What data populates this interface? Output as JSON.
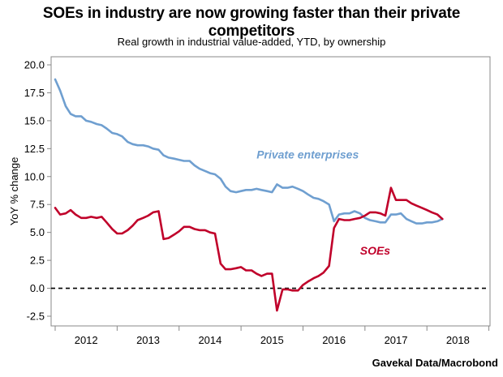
{
  "chart_data": {
    "type": "line",
    "title": "SOEs in industry are now growing faster than their private competitors",
    "subtitle": "Real growth in industrial value-added, YTD, by ownership",
    "ylabel": "YoY % change",
    "xlabel": "",
    "ylim": [
      -2.5,
      20.0
    ],
    "yticks": [
      "20.0",
      "17.5",
      "15.0",
      "12.5",
      "10.0",
      "7.5",
      "5.0",
      "2.5",
      "0.0",
      "-2.5"
    ],
    "year_labels": [
      "2012",
      "2013",
      "2014",
      "2015",
      "2016",
      "2017",
      "2018"
    ],
    "x_start": 2012.0,
    "x_end": 2018.94,
    "reference_line": 0,
    "series": [
      {
        "name": "Private enterprises",
        "color": "#6f9fd0",
        "points": [
          [
            2012.0,
            18.7
          ],
          [
            2012.08,
            17.7
          ],
          [
            2012.17,
            16.3
          ],
          [
            2012.25,
            15.6
          ],
          [
            2012.33,
            15.4
          ],
          [
            2012.42,
            15.4
          ],
          [
            2012.5,
            15.0
          ],
          [
            2012.58,
            14.9
          ],
          [
            2012.67,
            14.7
          ],
          [
            2012.75,
            14.6
          ],
          [
            2012.83,
            14.3
          ],
          [
            2012.92,
            13.9
          ],
          [
            2013.0,
            13.8
          ],
          [
            2013.08,
            13.6
          ],
          [
            2013.17,
            13.1
          ],
          [
            2013.25,
            12.9
          ],
          [
            2013.33,
            12.8
          ],
          [
            2013.42,
            12.8
          ],
          [
            2013.5,
            12.7
          ],
          [
            2013.58,
            12.5
          ],
          [
            2013.67,
            12.4
          ],
          [
            2013.75,
            11.9
          ],
          [
            2013.83,
            11.7
          ],
          [
            2013.92,
            11.6
          ],
          [
            2014.0,
            11.5
          ],
          [
            2014.08,
            11.4
          ],
          [
            2014.17,
            11.4
          ],
          [
            2014.25,
            11.0
          ],
          [
            2014.33,
            10.7
          ],
          [
            2014.42,
            10.5
          ],
          [
            2014.5,
            10.3
          ],
          [
            2014.58,
            10.2
          ],
          [
            2014.67,
            9.8
          ],
          [
            2014.75,
            9.1
          ],
          [
            2014.83,
            8.7
          ],
          [
            2014.92,
            8.6
          ],
          [
            2015.0,
            8.7
          ],
          [
            2015.08,
            8.8
          ],
          [
            2015.17,
            8.8
          ],
          [
            2015.25,
            8.9
          ],
          [
            2015.33,
            8.8
          ],
          [
            2015.42,
            8.7
          ],
          [
            2015.5,
            8.6
          ],
          [
            2015.58,
            9.3
          ],
          [
            2015.67,
            9.0
          ],
          [
            2015.75,
            9.0
          ],
          [
            2015.83,
            9.1
          ],
          [
            2015.92,
            8.9
          ],
          [
            2016.0,
            8.7
          ],
          [
            2016.08,
            8.4
          ],
          [
            2016.17,
            8.1
          ],
          [
            2016.25,
            8.0
          ],
          [
            2016.33,
            7.8
          ],
          [
            2016.42,
            7.5
          ],
          [
            2016.5,
            6.0
          ],
          [
            2016.58,
            6.6
          ],
          [
            2016.67,
            6.7
          ],
          [
            2016.75,
            6.7
          ],
          [
            2016.83,
            6.9
          ],
          [
            2016.92,
            6.7
          ],
          [
            2017.0,
            6.3
          ],
          [
            2017.08,
            6.1
          ],
          [
            2017.17,
            6.0
          ],
          [
            2017.25,
            5.9
          ],
          [
            2017.33,
            5.9
          ],
          [
            2017.42,
            6.6
          ],
          [
            2017.5,
            6.6
          ],
          [
            2017.58,
            6.7
          ],
          [
            2017.67,
            6.2
          ],
          [
            2017.75,
            6.0
          ],
          [
            2017.83,
            5.8
          ],
          [
            2017.92,
            5.8
          ],
          [
            2018.0,
            5.9
          ],
          [
            2018.08,
            5.9
          ],
          [
            2018.17,
            6.0
          ],
          [
            2018.25,
            6.2
          ]
        ]
      },
      {
        "name": "SOEs",
        "color": "#c0002a",
        "points": [
          [
            2012.0,
            7.2
          ],
          [
            2012.08,
            6.6
          ],
          [
            2012.17,
            6.7
          ],
          [
            2012.25,
            7.0
          ],
          [
            2012.33,
            6.6
          ],
          [
            2012.42,
            6.3
          ],
          [
            2012.5,
            6.3
          ],
          [
            2012.58,
            6.4
          ],
          [
            2012.67,
            6.3
          ],
          [
            2012.75,
            6.4
          ],
          [
            2012.83,
            5.9
          ],
          [
            2012.92,
            5.3
          ],
          [
            2013.0,
            4.9
          ],
          [
            2013.08,
            4.9
          ],
          [
            2013.17,
            5.2
          ],
          [
            2013.25,
            5.6
          ],
          [
            2013.33,
            6.1
          ],
          [
            2013.42,
            6.3
          ],
          [
            2013.5,
            6.5
          ],
          [
            2013.58,
            6.8
          ],
          [
            2013.67,
            6.9
          ],
          [
            2013.75,
            4.4
          ],
          [
            2013.83,
            4.5
          ],
          [
            2013.92,
            4.8
          ],
          [
            2014.0,
            5.1
          ],
          [
            2014.08,
            5.5
          ],
          [
            2014.17,
            5.5
          ],
          [
            2014.25,
            5.3
          ],
          [
            2014.33,
            5.2
          ],
          [
            2014.42,
            5.2
          ],
          [
            2014.5,
            5.0
          ],
          [
            2014.58,
            4.9
          ],
          [
            2014.67,
            2.2
          ],
          [
            2014.75,
            1.7
          ],
          [
            2014.83,
            1.7
          ],
          [
            2014.92,
            1.8
          ],
          [
            2015.0,
            1.9
          ],
          [
            2015.08,
            1.6
          ],
          [
            2015.17,
            1.6
          ],
          [
            2015.25,
            1.3
          ],
          [
            2015.33,
            1.1
          ],
          [
            2015.42,
            1.3
          ],
          [
            2015.5,
            1.3
          ],
          [
            2015.58,
            -2.0
          ],
          [
            2015.67,
            -0.1
          ],
          [
            2015.75,
            -0.1
          ],
          [
            2015.83,
            -0.2
          ],
          [
            2015.92,
            -0.2
          ],
          [
            2016.0,
            0.3
          ],
          [
            2016.08,
            0.6
          ],
          [
            2016.17,
            0.9
          ],
          [
            2016.25,
            1.1
          ],
          [
            2016.33,
            1.4
          ],
          [
            2016.42,
            2.0
          ],
          [
            2016.5,
            5.4
          ],
          [
            2016.58,
            6.2
          ],
          [
            2016.67,
            6.1
          ],
          [
            2016.75,
            6.1
          ],
          [
            2016.83,
            6.2
          ],
          [
            2016.92,
            6.3
          ],
          [
            2017.0,
            6.5
          ],
          [
            2017.08,
            6.8
          ],
          [
            2017.17,
            6.8
          ],
          [
            2017.25,
            6.7
          ],
          [
            2017.33,
            6.5
          ],
          [
            2017.42,
            9.0
          ],
          [
            2017.5,
            7.9
          ],
          [
            2017.58,
            7.9
          ],
          [
            2017.67,
            7.9
          ],
          [
            2017.75,
            7.6
          ],
          [
            2017.83,
            7.4
          ],
          [
            2017.92,
            7.2
          ],
          [
            2018.0,
            7.0
          ],
          [
            2018.08,
            6.8
          ],
          [
            2018.17,
            6.6
          ],
          [
            2018.25,
            6.2
          ]
        ]
      }
    ],
    "annotations": [
      {
        "text": "Private enterprises",
        "series": "Private enterprises",
        "at": [
          2015.25,
          11.6
        ]
      },
      {
        "text": "SOEs",
        "series": "SOEs",
        "at": [
          2016.92,
          3.0
        ]
      }
    ]
  },
  "source": "Gavekal Data/Macrobond"
}
